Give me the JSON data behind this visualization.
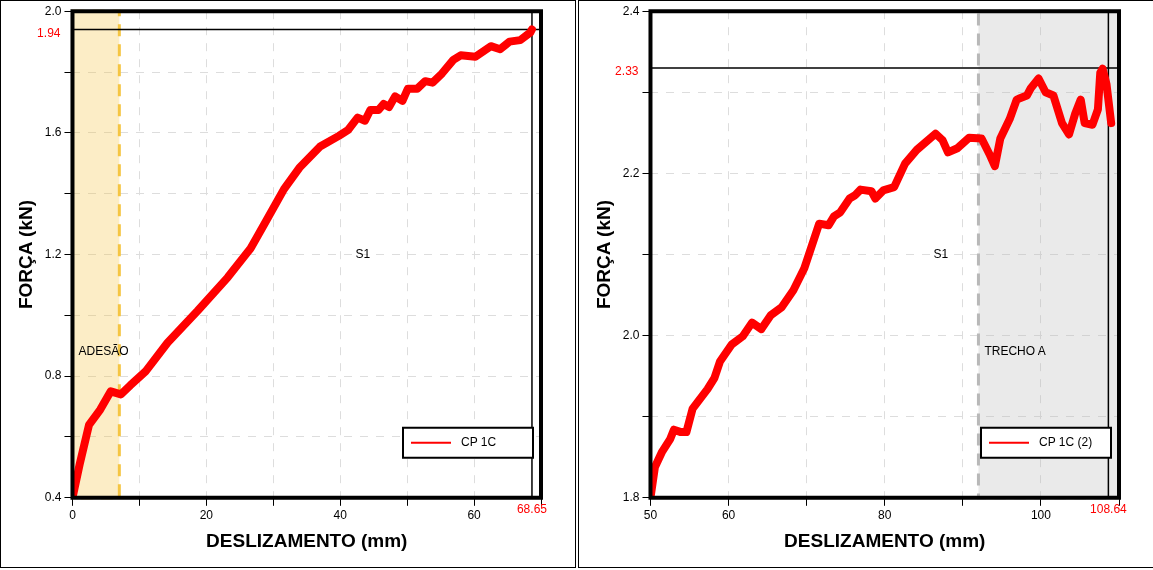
{
  "chart_data": [
    {
      "type": "line",
      "xlabel": "DESLIZAMENTO (mm)",
      "ylabel": "FORÇA (kN)",
      "xlim": [
        0,
        70
      ],
      "ylim": [
        0.4,
        2.0
      ],
      "xticks": [
        0,
        {
          "value": 10,
          "label": null
        },
        20,
        {
          "value": 30,
          "label": null
        },
        40,
        {
          "value": 50,
          "label": null
        },
        60,
        {
          "value": 70,
          "label": null
        }
      ],
      "yticks": [
        0.4,
        {
          "value": 0.6,
          "label": null
        },
        0.8,
        {
          "value": 1.0,
          "label": null
        },
        1.2,
        {
          "value": 1.4,
          "label": null
        },
        1.6,
        {
          "value": 1.8,
          "label": null
        },
        {
          "value": 2.0,
          "label": "2.0"
        }
      ],
      "grid": true,
      "legend": "bottom right",
      "x": [
        0,
        1.07,
        2.47,
        4.15,
        5.72,
        7.23,
        8.64,
        10.9,
        14.2,
        18.7,
        23.2,
        26.6,
        28.8,
        31.6,
        33.9,
        37.0,
        39.8,
        41.2,
        42.6,
        43.7,
        44.5,
        45.7,
        46.5,
        47.3,
        48.2,
        49.3,
        50.1,
        51.5,
        52.7,
        53.8,
        55.2,
        56.9,
        58.0,
        60.2,
        62.5,
        63.9,
        65.3,
        66.9,
        68.4,
        68.65
      ],
      "series": [
        {
          "name": "CP 1C",
          "color": "#ff0000",
          "values": [
            0.4,
            0.51,
            0.64,
            0.69,
            0.75,
            0.74,
            0.77,
            0.815,
            0.91,
            1.015,
            1.125,
            1.22,
            1.305,
            1.415,
            1.485,
            1.555,
            1.59,
            1.61,
            1.65,
            1.64,
            1.675,
            1.675,
            1.695,
            1.685,
            1.72,
            1.705,
            1.745,
            1.745,
            1.77,
            1.765,
            1.795,
            1.84,
            1.855,
            1.85,
            1.885,
            1.875,
            1.9,
            1.905,
            1.93,
            1.94
          ]
        }
      ],
      "ref_lines": [
        {
          "axis": "y",
          "value": 1.94,
          "label": "1.94",
          "color": "#000000"
        },
        {
          "axis": "x",
          "value": 68.65,
          "label": "68.65",
          "color": "#000000"
        }
      ],
      "bands": [
        {
          "axis": "x",
          "from": 0,
          "to": 7,
          "label": "ADESÃO",
          "color": "#f5c542"
        }
      ],
      "annotations": [
        "S1"
      ]
    },
    {
      "type": "line",
      "xlabel": "DESLIZAMENTO (mm)",
      "ylabel": "FORÇA (kN)",
      "xlim": [
        50,
        110
      ],
      "ylim": [
        1.8,
        2.4
      ],
      "xticks": [
        50,
        60,
        {
          "value": 70,
          "label": null
        },
        80,
        {
          "value": 90,
          "label": null
        },
        100,
        {
          "value": 110,
          "label": null
        }
      ],
      "yticks": [
        1.8,
        {
          "value": 1.9,
          "label": null
        },
        {
          "value": 2.0,
          "label": "2.0"
        },
        {
          "value": 2.1,
          "label": null
        },
        2.2,
        {
          "value": 2.3,
          "label": null
        },
        2.4
      ],
      "grid": true,
      "legend": "bottom right",
      "x": [
        50,
        50.57,
        51.5,
        52.5,
        53.0,
        53.9,
        54.6,
        55.4,
        57.3,
        58.2,
        58.9,
        60.4,
        61.8,
        63.0,
        64.2,
        65.4,
        66.8,
        68.3,
        69.7,
        71.6,
        72.8,
        73.5,
        74.3,
        75.5,
        76.2,
        76.9,
        78.3,
        78.8,
        79.8,
        81.2,
        82.6,
        84.1,
        86.5,
        87.4,
        88.1,
        89.3,
        90.8,
        92.4,
        93.4,
        94.1,
        94.8,
        96.0,
        96.9,
        98.2,
        98.7,
        99.7,
        100.6,
        101.6,
        102.7,
        103.6,
        104.4,
        105.1,
        105.6,
        106.6,
        107.3,
        107.6,
        107.9,
        108.4,
        109.0
      ],
      "series": [
        {
          "name": "CP 1C (2)",
          "color": "#ff0000",
          "values": [
            1.8,
            1.838,
            1.857,
            1.872,
            1.884,
            1.881,
            1.881,
            1.91,
            1.934,
            1.948,
            1.968,
            1.989,
            1.999,
            2.016,
            2.008,
            2.025,
            2.035,
            2.056,
            2.083,
            2.138,
            2.136,
            2.147,
            2.152,
            2.169,
            2.173,
            2.18,
            2.178,
            2.169,
            2.179,
            2.183,
            2.212,
            2.229,
            2.249,
            2.241,
            2.226,
            2.231,
            2.244,
            2.243,
            2.224,
            2.209,
            2.243,
            2.267,
            2.291,
            2.296,
            2.305,
            2.317,
            2.3,
            2.296,
            2.262,
            2.248,
            2.274,
            2.291,
            2.262,
            2.26,
            2.279,
            2.324,
            2.329,
            2.31,
            2.262
          ]
        }
      ],
      "ref_lines": [
        {
          "axis": "y",
          "value": 2.33,
          "label": "2.33",
          "color": "#000000"
        },
        {
          "axis": "x",
          "value": 108.64,
          "label": "108.64",
          "color": "#000000"
        }
      ],
      "bands": [
        {
          "axis": "x",
          "from": 92,
          "to": 110,
          "label": "TRECHO A",
          "color": "#b8b8b8"
        }
      ],
      "annotations": [
        "S1"
      ]
    }
  ]
}
